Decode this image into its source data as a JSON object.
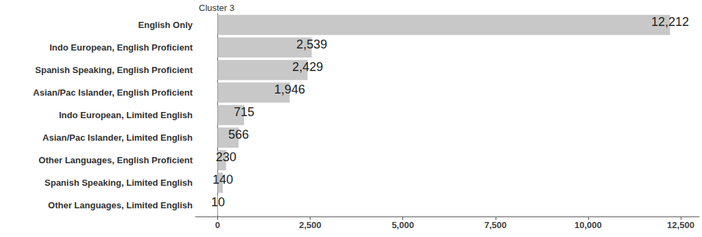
{
  "chart_data": {
    "type": "bar",
    "title": "Cluster 3",
    "orientation": "horizontal",
    "categories": [
      "English Only",
      "Indo European, English Proficient",
      "Spanish Speaking, English Proficient",
      "Asian/Pac Islander, English Proficient",
      "Indo European, Limited English",
      "Asian/Pac Islander, Limited English",
      "Other Languages, English Proficient",
      "Spanish Speaking, Limited English",
      "Other Languages, Limited English"
    ],
    "values": [
      12212,
      2539,
      2429,
      1946,
      715,
      566,
      230,
      140,
      10
    ],
    "value_labels": [
      "12,212",
      "2,539",
      "2,429",
      "1,946",
      "715",
      "566",
      "230",
      "140",
      "10"
    ],
    "color": "#c8c8c8",
    "xlim": [
      -600,
      13000
    ],
    "xticks": [
      0,
      {
        "value": 2500,
        "label": "2,500"
      },
      {
        "value": 5000,
        "label": "5,000"
      },
      {
        "value": 7500,
        "label": "7,500"
      },
      {
        "value": 10000,
        "label": "10,000"
      },
      {
        "value": 12500,
        "label": "12,500"
      }
    ],
    "grid": false,
    "data_labels": true
  }
}
